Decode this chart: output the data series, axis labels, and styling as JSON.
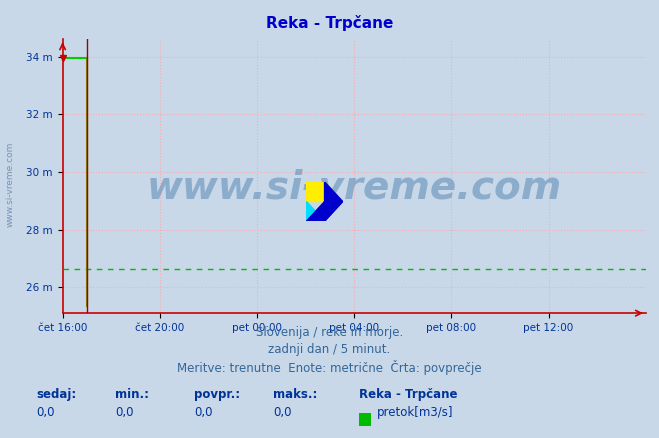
{
  "title": "Reka - Trpčane",
  "title_color": "#0000cc",
  "title_fontsize": 11,
  "bg_color": "#c8d8e8",
  "plot_bg_color": "#c8d8e8",
  "ylim": [
    25.1,
    34.6
  ],
  "yticks": [
    26,
    28,
    30,
    32,
    34
  ],
  "ytick_labels": [
    "26 m",
    "28 m",
    "30 m",
    "32 m",
    "34 m"
  ],
  "xlim_max": 288,
  "xtick_positions": [
    0,
    48,
    96,
    144,
    192,
    240
  ],
  "xtick_labels": [
    "čet 16:00",
    "čet 20:00",
    "pet 00:00",
    "pet 04:00",
    "pet 08:00",
    "pet 12:00"
  ],
  "grid_color": "#ffaaaa",
  "grid_style": ":",
  "axis_color": "#cc0000",
  "watermark": "www.si-vreme.com",
  "watermark_color": "#4477aa",
  "watermark_alpha": 0.45,
  "watermark_fontsize": 28,
  "subtitle_lines": [
    "Slovenija / reke in morje.",
    "zadnji dan / 5 minut.",
    "Meritve: trenutne  Enote: metrične  Črta: povprečje"
  ],
  "subtitle_color": "#336699",
  "subtitle_fontsize": 8.5,
  "legend_title": "Reka - Trpčane",
  "legend_label": "pretok[m3/s]",
  "legend_color": "#00bb00",
  "stats_labels": [
    "sedaj:",
    "min.:",
    "povpr.:",
    "maks.:"
  ],
  "stats_values": [
    "0,0",
    "0,0",
    "0,0",
    "0,0"
  ],
  "stats_color": "#003399",
  "line_color": "#00cc00",
  "line_width": 1.5,
  "avg_line_color": "#00bb00",
  "avg_line_style": "--",
  "avg_line_value": 26.65,
  "vertical_line_color": "#8800aa",
  "vertical_line_x": 12,
  "data_high_end_x": 12,
  "data_high_value": 33.97,
  "data_drop_color": "#888800",
  "data_drop_value": 25.35,
  "sidebar_text": "www.si-vreme.com",
  "sidebar_color": "#6688aa",
  "marker_color": "#cc0000"
}
